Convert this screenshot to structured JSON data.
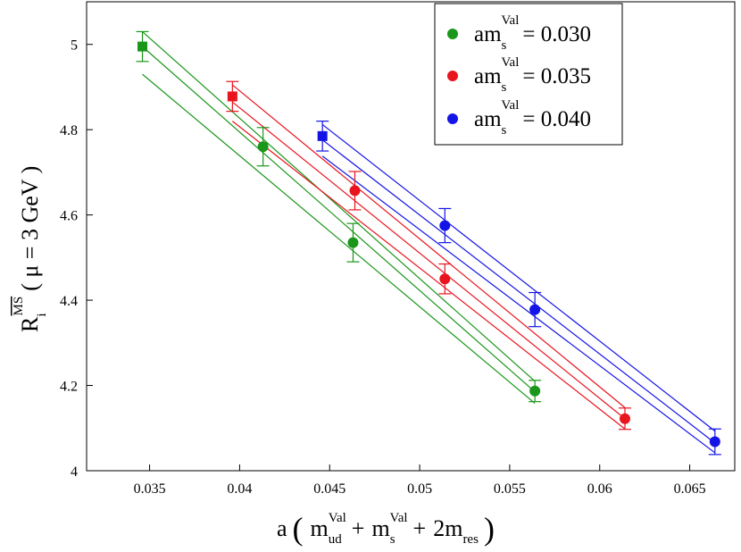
{
  "chart_data": {
    "type": "scatter",
    "title": "",
    "xlabel": {
      "prefix": "a",
      "open": "(",
      "term1": "m",
      "term1_sup": "Val",
      "term1_sub": "ud",
      "plus1": "+",
      "term2": "m",
      "term2_sup": "Val",
      "term2_sub": "s",
      "plus2": "+",
      "term3": "2m",
      "term3_sub": "res",
      "close": ")"
    },
    "ylabel": {
      "main": "R",
      "sub": "i",
      "sup": "MS",
      "paren": "( μ = 3 GeV )"
    },
    "xlim": [
      0.0315,
      0.0675
    ],
    "ylim": [
      4.0,
      5.1
    ],
    "xticks": [
      0.035,
      0.04,
      0.045,
      0.05,
      0.055,
      0.06,
      0.065
    ],
    "xtick_labels": [
      "0.035",
      "0.04",
      "0.045",
      "0.05",
      "0.055",
      "0.06",
      "0.065"
    ],
    "yticks": [
      4.0,
      4.2,
      4.4,
      4.6,
      4.8,
      5.0
    ],
    "ytick_labels": [
      "4",
      "4.2",
      "4.4",
      "4.6",
      "4.8",
      "5"
    ],
    "legend_position": "top-right",
    "series": [
      {
        "name": "0.030",
        "legend_label": "am",
        "legend_sup": "Val",
        "legend_sub": "s",
        "legend_value": "= 0.030",
        "color": "#1a961a",
        "points": [
          {
            "x": 0.0346,
            "y": 4.995,
            "err": 0.035,
            "marker": "square"
          },
          {
            "x": 0.0413,
            "y": 4.76,
            "err": 0.045,
            "marker": "circle"
          },
          {
            "x": 0.0463,
            "y": 4.535,
            "err": 0.045,
            "marker": "circle"
          },
          {
            "x": 0.0564,
            "y": 4.187,
            "err": 0.025,
            "marker": "circle"
          }
        ],
        "fit_lines": [
          {
            "x": [
              0.0346,
              0.0564
            ],
            "y": [
              5.03,
              4.21
            ]
          },
          {
            "x": [
              0.0346,
              0.0564
            ],
            "y": [
              4.995,
              4.185
            ]
          },
          {
            "x": [
              0.0346,
              0.0564
            ],
            "y": [
              4.93,
              4.158
            ]
          }
        ]
      },
      {
        "name": "0.035",
        "legend_label": "am",
        "legend_sup": "Val",
        "legend_sub": "s",
        "legend_value": "= 0.035",
        "color": "#e8141e",
        "points": [
          {
            "x": 0.0396,
            "y": 4.878,
            "err": 0.035,
            "marker": "square"
          },
          {
            "x": 0.0464,
            "y": 4.657,
            "err": 0.045,
            "marker": "circle"
          },
          {
            "x": 0.0514,
            "y": 4.45,
            "err": 0.035,
            "marker": "circle"
          },
          {
            "x": 0.0614,
            "y": 4.122,
            "err": 0.025,
            "marker": "circle"
          }
        ],
        "fit_lines": [
          {
            "x": [
              0.0396,
              0.0614
            ],
            "y": [
              4.905,
              4.148
            ]
          },
          {
            "x": [
              0.0396,
              0.0614
            ],
            "y": [
              4.865,
              4.122
            ]
          },
          {
            "x": [
              0.0396,
              0.0614
            ],
            "y": [
              4.82,
              4.098
            ]
          }
        ]
      },
      {
        "name": "0.040",
        "legend_label": "am",
        "legend_sup": "Val",
        "legend_sub": "s",
        "legend_value": "= 0.040",
        "color": "#1414e6",
        "points": [
          {
            "x": 0.0446,
            "y": 4.785,
            "err": 0.035,
            "marker": "square"
          },
          {
            "x": 0.0514,
            "y": 4.575,
            "err": 0.04,
            "marker": "circle"
          },
          {
            "x": 0.0564,
            "y": 4.378,
            "err": 0.04,
            "marker": "circle"
          },
          {
            "x": 0.0664,
            "y": 4.068,
            "err": 0.03,
            "marker": "circle"
          }
        ],
        "fit_lines": [
          {
            "x": [
              0.0446,
              0.0664
            ],
            "y": [
              4.812,
              4.093
            ]
          },
          {
            "x": [
              0.0446,
              0.0664
            ],
            "y": [
              4.776,
              4.065
            ]
          },
          {
            "x": [
              0.0446,
              0.0664
            ],
            "y": [
              4.738,
              4.042
            ]
          }
        ]
      }
    ]
  }
}
